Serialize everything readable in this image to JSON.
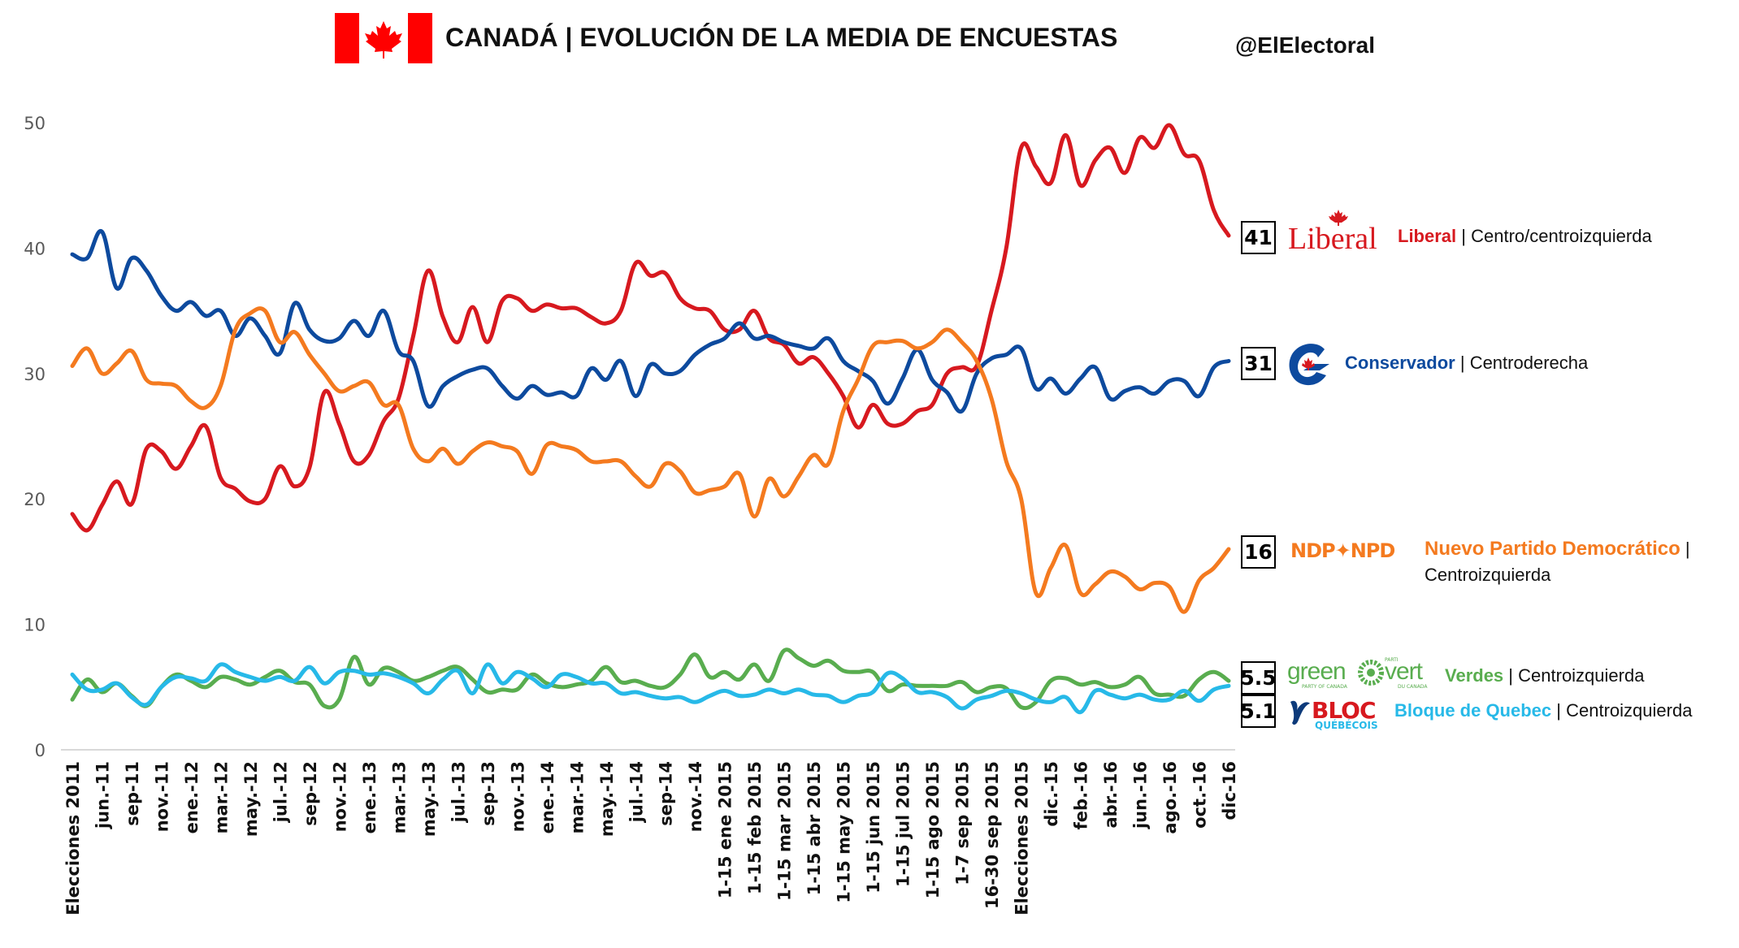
{
  "header": {
    "title": "CANADÁ | EVOLUCIÓN DE LA MEDIA DE ENCUESTAS",
    "handle": "@ElElectoral",
    "flag_icon": "canada-flag",
    "flag_colors": {
      "red": "#ff0000",
      "white": "#ffffff"
    }
  },
  "chart_data": {
    "type": "line",
    "title": "CANADÁ | EVOLUCIÓN DE LA MEDIA DE ENCUESTAS",
    "xlabel": "",
    "ylabel": "",
    "ylim": [
      0,
      50
    ],
    "yticks": [
      "0",
      "10",
      "20",
      "30",
      "40",
      "50"
    ],
    "grid": false,
    "smooth": true,
    "legend_placement": "right",
    "categories": [
      "Elecciones 2011",
      "",
      "jun.-11",
      "",
      "sep-11",
      "",
      "nov.-11",
      "",
      "ene.-12",
      "",
      "mar.-12",
      "",
      "may.-12",
      "",
      "jul.-12",
      "",
      "sep-12",
      "",
      "nov.-12",
      "",
      "ene.-13",
      "",
      "mar.-13",
      "",
      "may.-13",
      "",
      "jul.-13",
      "",
      "sep-13",
      "",
      "nov.-13",
      "",
      "ene.-14",
      "",
      "mar.-14",
      "",
      "may.-14",
      "",
      "jul.-14",
      "",
      "sep-14",
      "",
      "nov.-14",
      "",
      "1-15 ene 2015",
      "",
      "1-15 feb 2015",
      "",
      "1-15 mar 2015",
      "",
      "1-15 abr 2015",
      "",
      "1-15 may 2015",
      "",
      "1-15 jun 2015",
      "",
      "1-15 jul 2015",
      "",
      "1-15 ago 2015",
      "",
      "1-7 sep 2015",
      "",
      "16-30 sep 2015",
      "",
      "Elecciones 2015",
      "",
      "dic.-15",
      "",
      "feb.-16",
      "",
      "abr.-16",
      "",
      "jun.-16",
      "",
      "ago.-16",
      "",
      "oct.-16",
      "",
      "dic-16"
    ],
    "series": [
      {
        "name": "Liberal",
        "color": "#d7191f",
        "last_value": "41",
        "values": [
          18.8,
          17.5,
          19.5,
          21.4,
          19.6,
          24,
          23.8,
          22.4,
          24.2,
          25.8,
          21.7,
          20.8,
          19.8,
          20,
          22.6,
          21,
          22.5,
          28.5,
          26,
          23,
          23.5,
          26.2,
          28,
          33,
          38.2,
          34.5,
          32.5,
          35.3,
          32.5,
          35.8,
          36,
          35,
          35.5,
          35.2,
          35.2,
          34.5,
          34,
          35,
          38.8,
          37.8,
          38,
          36,
          35.2,
          35,
          33.5,
          33.5,
          35,
          32.8,
          32.3,
          30.8,
          31.3,
          30,
          28.2,
          25.7,
          27.5,
          26,
          26,
          27,
          27.5,
          30,
          30.5,
          30.6,
          35,
          40,
          48,
          46.5,
          45.2,
          49,
          45,
          47,
          48,
          46,
          48.8,
          48,
          49.8,
          47.5,
          47,
          43,
          41
        ]
      },
      {
        "name": "Conservador",
        "color": "#0d4a9e",
        "last_value": "31",
        "values": [
          39.5,
          39.2,
          41.3,
          36.8,
          39.2,
          38.2,
          36.2,
          35,
          35.7,
          34.6,
          35,
          33,
          34.4,
          33,
          31.6,
          35.6,
          33.5,
          32.6,
          32.8,
          34.2,
          33,
          35,
          31.8,
          31,
          27.4,
          29,
          29.8,
          30.3,
          30.4,
          29,
          28,
          29,
          28.3,
          28.5,
          28.2,
          30.4,
          29.5,
          31,
          28.2,
          30.7,
          30,
          30.2,
          31.5,
          32.3,
          32.8,
          34,
          32.8,
          33,
          32.5,
          32.2,
          32,
          32.8,
          31,
          30.2,
          29.4,
          27.6,
          29.6,
          31.9,
          29.5,
          28.5,
          27,
          30,
          31.2,
          31.5,
          32,
          28.8,
          29.6,
          28.4,
          29.6,
          30.5,
          28,
          28.6,
          28.9,
          28.4,
          29.4,
          29.4,
          28.2,
          30.5,
          31
        ]
      },
      {
        "name": "Nuevo Partido Democrático",
        "color": "#f47a1f",
        "last_value": "16",
        "values": [
          30.6,
          32,
          30,
          30.8,
          31.8,
          29.5,
          29.2,
          29,
          27.8,
          27.3,
          29,
          33.5,
          34.8,
          35,
          32.5,
          33.3,
          31.5,
          30,
          28.6,
          29,
          29.3,
          27.5,
          27.5,
          24,
          23,
          24,
          22.8,
          23.8,
          24.5,
          24.2,
          23.8,
          22,
          24.3,
          24.2,
          23.9,
          23,
          23,
          23,
          21.8,
          21,
          22.8,
          22.2,
          20.5,
          20.7,
          21,
          22,
          18.6,
          21.6,
          20.2,
          21.8,
          23.5,
          22.8,
          27,
          29.5,
          32.2,
          32.5,
          32.6,
          32,
          32.5,
          33.5,
          32.5,
          31,
          28,
          23,
          20,
          12.5,
          14.5,
          16.3,
          12.5,
          13.2,
          14.2,
          13.8,
          12.8,
          13.3,
          13,
          11,
          13.5,
          14.5,
          16
        ]
      },
      {
        "name": "Verdes",
        "color": "#59ad4f",
        "last_value": "5.5",
        "values": [
          4,
          5.6,
          4.6,
          5.3,
          4.3,
          3.5,
          5,
          6,
          5.5,
          5,
          5.8,
          5.6,
          5.2,
          5.8,
          6.3,
          5.4,
          5.2,
          3.5,
          4,
          7.4,
          5.2,
          6.5,
          6.2,
          5.5,
          5.8,
          6.3,
          6.6,
          5.6,
          4.6,
          4.8,
          4.8,
          6,
          5.3,
          5,
          5.2,
          5.5,
          6.6,
          5.4,
          5.5,
          5.1,
          5,
          6,
          7.6,
          5.8,
          6.2,
          5.6,
          6.8,
          5.5,
          7.9,
          7.3,
          6.7,
          7.1,
          6.3,
          6.2,
          6.2,
          4.7,
          5.2,
          5.1,
          5.1,
          5.1,
          5.4,
          4.6,
          5,
          4.9,
          3.4,
          3.8,
          5.5,
          5.7,
          5.2,
          5.4,
          5,
          5.2,
          5.8,
          4.5,
          4.4,
          4.3,
          5.6,
          6.2,
          5.5
        ]
      },
      {
        "name": "Bloque de Quebec",
        "color": "#27b9e8",
        "last_value": "5.1",
        "values": [
          6,
          4.8,
          4.8,
          5.3,
          4.2,
          3.6,
          5,
          5.8,
          5.7,
          5.5,
          6.8,
          6.2,
          5.8,
          5.5,
          5.8,
          5.5,
          6.6,
          5.3,
          6.2,
          6.3,
          6,
          6.1,
          5.8,
          5.3,
          4.5,
          5.6,
          6.3,
          4.5,
          6.8,
          5.3,
          6.2,
          5.7,
          5,
          6,
          5.8,
          5.3,
          5.3,
          4.5,
          4.6,
          4.3,
          4.1,
          4.2,
          3.8,
          4.3,
          4.7,
          4.3,
          4.4,
          4.8,
          4.5,
          4.8,
          4.4,
          4.3,
          3.8,
          4.3,
          4.6,
          6.1,
          5.7,
          4.6,
          4.6,
          4.2,
          3.3,
          4,
          4.3,
          4.7,
          4.5,
          4,
          3.8,
          4.2,
          3,
          4.7,
          4.4,
          4.1,
          4.4,
          4,
          4,
          4.7,
          3.9,
          4.8,
          5.1
        ]
      }
    ]
  },
  "legend": {
    "separator": "|",
    "items": [
      {
        "value": "41",
        "name": "Liberal",
        "desc": "Centro/centroizquierda",
        "logo_icon": "liberal-logo",
        "logo_text": "Liberal"
      },
      {
        "value": "31",
        "name": "Conservador",
        "desc": "Centroderecha",
        "logo_icon": "conservative-logo"
      },
      {
        "value": "16",
        "name": "Nuevo Partido Democrático",
        "desc": "Centroizquierda",
        "logo_icon": "ndp-logo",
        "logo_text": "NDP✦NPD"
      },
      {
        "value": "5.5",
        "name": "Verdes",
        "desc": "Centroizquierda",
        "logo_icon": "green-party-logo",
        "logo_text": "green vert",
        "logo_small": [
          "PARTY OF CANADA",
          "PARTI",
          "DU CANADA"
        ]
      },
      {
        "value": "5.1",
        "name": "Bloque de Quebec",
        "desc": "Centroizquierda",
        "logo_icon": "bloc-quebecois-logo",
        "logo_text": "BLOC",
        "logo_sub": "QUÉBÉCOIS"
      }
    ]
  }
}
